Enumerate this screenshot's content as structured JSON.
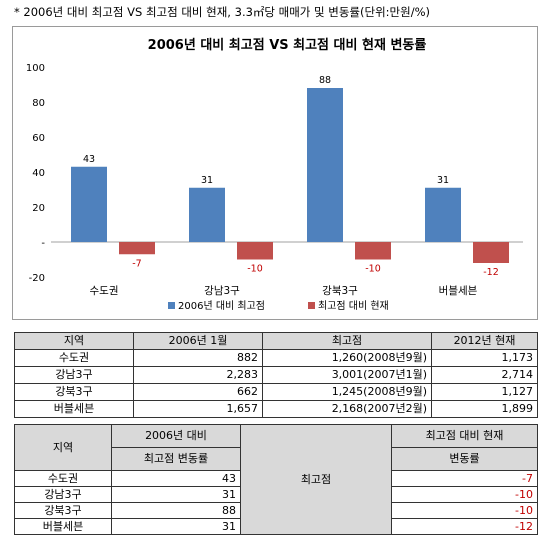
{
  "caption": "* 2006년 대비 최고점 VS 최고점 대비 현재, 3.3㎡당 매매가 및 변동률(단위:만원/%)",
  "colors": {
    "series1": "#4f81bd",
    "series2": "#c0504d",
    "negative_text": "#c00000"
  },
  "chart_data": {
    "type": "bar",
    "title": "2006년 대비 최고점 VS 최고점 대비 현재 변동률",
    "categories": [
      "수도권",
      "강남3구",
      "강북3구",
      "버블세븐"
    ],
    "series": [
      {
        "name": "2006년 대비 최고점",
        "values": [
          43,
          31,
          88,
          31
        ]
      },
      {
        "name": "최고점 대비 현재",
        "values": [
          -7,
          -10,
          -10,
          -12
        ]
      }
    ],
    "value_labels": [
      [
        "43",
        "31",
        "88",
        "31"
      ],
      [
        "-7",
        "-10",
        "-10",
        "-12"
      ]
    ],
    "ylim": [
      -20,
      100
    ],
    "yticks": [
      "100",
      "80",
      "60",
      "40",
      "20",
      "-",
      "-20"
    ],
    "legend_position": "bottom",
    "grid": false
  },
  "table1": {
    "headers": [
      "지역",
      "2006년 1월",
      "최고점",
      "2012년 현재"
    ],
    "rows": [
      [
        "수도권",
        "882",
        "1,260(2008년9월)",
        "1,173"
      ],
      [
        "강남3구",
        "2,283",
        "3,001(2007년1월)",
        "2,714"
      ],
      [
        "강북3구",
        "662",
        "1,245(2008년9월)",
        "1,127"
      ],
      [
        "버블세븐",
        "1,657",
        "2,168(2007년2월)",
        "1,899"
      ]
    ]
  },
  "table2": {
    "header_region": "지역",
    "header_col2": [
      "2006년 대비",
      "최고점 변동률"
    ],
    "merged_label": "최고점",
    "header_col4": [
      "최고점 대비 현재",
      "변동률"
    ],
    "rows": [
      [
        "수도권",
        "43",
        "-7"
      ],
      [
        "강남3구",
        "31",
        "-10"
      ],
      [
        "강북3구",
        "88",
        "-10"
      ],
      [
        "버블세븐",
        "31",
        "-12"
      ]
    ]
  }
}
